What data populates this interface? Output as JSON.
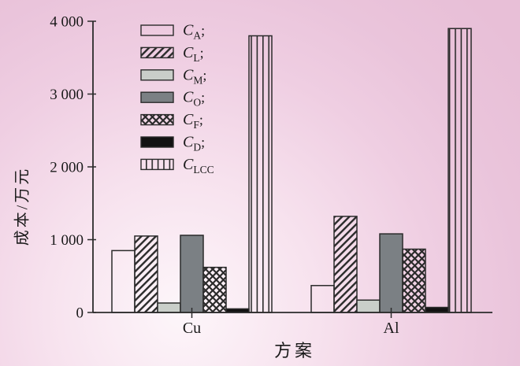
{
  "chart_data": {
    "type": "bar",
    "title": "",
    "xlabel": "方案",
    "ylabel": "成本/万元",
    "categories": [
      "Cu",
      "Al"
    ],
    "series": [
      {
        "name": "C_A",
        "legend": {
          "base": "C",
          "sub": "A",
          "sep": ";"
        },
        "style": "outline",
        "values": [
          850,
          370
        ]
      },
      {
        "name": "C_L",
        "legend": {
          "base": "C",
          "sub": "L",
          "sep": ";"
        },
        "style": "diagonal-hatch",
        "values": [
          1050,
          1320
        ]
      },
      {
        "name": "C_M",
        "legend": {
          "base": "C",
          "sub": "M",
          "sep": ";"
        },
        "style": "solid-lightgray",
        "values": [
          130,
          170
        ]
      },
      {
        "name": "C_O",
        "legend": {
          "base": "C",
          "sub": "O",
          "sep": ";"
        },
        "style": "solid-gray",
        "values": [
          1060,
          1080
        ]
      },
      {
        "name": "C_F",
        "legend": {
          "base": "C",
          "sub": "F",
          "sep": ";"
        },
        "style": "diamond-crosshatch",
        "values": [
          620,
          870
        ]
      },
      {
        "name": "C_D",
        "legend": {
          "base": "C",
          "sub": "D",
          "sep": ";"
        },
        "style": "solid-black",
        "values": [
          50,
          70
        ]
      },
      {
        "name": "C_LCC",
        "legend": {
          "base": "C",
          "sub": "LCC",
          "sep": ""
        },
        "style": "vertical-lines",
        "values": [
          3800,
          3900
        ]
      }
    ],
    "ylim": [
      0,
      4000
    ],
    "yticks": [
      {
        "value": 0,
        "label": "0"
      },
      {
        "value": 1000,
        "label": "1 000"
      },
      {
        "value": 2000,
        "label": "2 000"
      },
      {
        "value": 3000,
        "label": "3 000"
      },
      {
        "value": 4000,
        "label": "4 000"
      }
    ],
    "legend_position": "upper-left-inside",
    "grid": false,
    "colors": {
      "light_gray": "#c9cec9",
      "gray": "#7b8084",
      "black": "#121212",
      "outline": "#2b2b2b",
      "text": "#1a1a1a",
      "background_pink": "#e8bfd7",
      "background_light": "#fdf6fa"
    }
  }
}
